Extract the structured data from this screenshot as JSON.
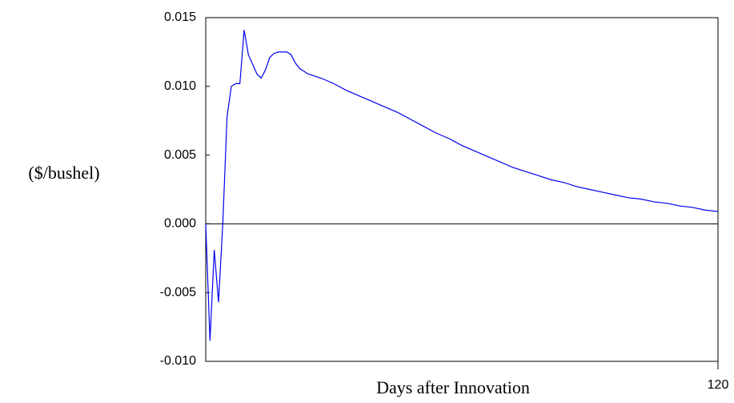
{
  "chart_data": {
    "type": "line",
    "y_label": "($/bushel)",
    "x_label": "Days after Innovation",
    "x": [
      0,
      1,
      2,
      3,
      4,
      5,
      6,
      7,
      8,
      9,
      10,
      11,
      12,
      13,
      14,
      15,
      16,
      17,
      18,
      19,
      20,
      21,
      22,
      23,
      24,
      27,
      30,
      33,
      36,
      39,
      42,
      45,
      48,
      51,
      54,
      57,
      60,
      63,
      66,
      69,
      72,
      75,
      78,
      81,
      84,
      87,
      90,
      93,
      96,
      99,
      102,
      105,
      108,
      111,
      114,
      117,
      120
    ],
    "series": [
      {
        "color": "#0000ee",
        "values": [
          0,
          -0.0085,
          -0.0019,
          -0.0057,
          0.0,
          0.0078,
          0.01,
          0.0102,
          0.0102,
          0.0141,
          0.0123,
          0.0116,
          0.0109,
          0.0106,
          0.0112,
          0.0121,
          0.0124,
          0.0125,
          0.0125,
          0.0125,
          0.0123,
          0.0117,
          0.0113,
          0.0111,
          0.0109,
          0.0106,
          0.0102,
          0.0097,
          0.0093,
          0.0089,
          0.0085,
          0.0081,
          0.0076,
          0.0071,
          0.0066,
          0.0062,
          0.0057,
          0.0053,
          0.0049,
          0.0045,
          0.0041,
          0.0038,
          0.0035,
          0.0032,
          0.003,
          0.0027,
          0.0025,
          0.0023,
          0.0021,
          0.0019,
          0.0018,
          0.0016,
          0.0015,
          0.0013,
          0.0012,
          0.001,
          0.0009
        ]
      }
    ],
    "xlim": [
      0,
      120
    ],
    "xticks": [
      120
    ],
    "ylim": [
      -0.01,
      0.015
    ],
    "yticks": [
      {
        "value": -0.01,
        "label": "-0.010"
      },
      {
        "value": -0.005,
        "label": "-0.005"
      },
      {
        "value": 0,
        "label": "0.000"
      },
      {
        "value": 0.005,
        "label": "0.005"
      },
      {
        "value": 0.01,
        "label": "0.010"
      },
      {
        "value": 0.015,
        "label": "0.015"
      }
    ],
    "zero_line": true
  }
}
